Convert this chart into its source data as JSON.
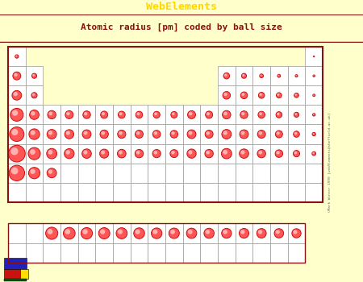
{
  "title_bar": "WebElements",
  "title_bar_bg": "#8B1010",
  "title_bar_fg": "#FFD700",
  "subtitle": "Atomic radius [pm] coded by ball size",
  "subtitle_bg": "#FFFFCC",
  "subtitle_fg": "#8B1010",
  "outer_bg": "#FFFFCC",
  "main_bg": "#FFFFCC",
  "cell_bg": "#FFFFFF",
  "cell_border": "#999999",
  "frame_border": "#8B1010",
  "ball_fill": "#FF5555",
  "ball_edge": "#CC1111",
  "ball_highlight": "#FFAAAA",
  "watermark": "©Mark Winter 1999 [web9lements@sheffield.ac.uk]",
  "elements": [
    {
      "row": 1,
      "col": 1,
      "r": 0.18
    },
    {
      "row": 1,
      "col": 18,
      "r": 0.06
    },
    {
      "row": 2,
      "col": 1,
      "r": 0.42
    },
    {
      "row": 2,
      "col": 2,
      "r": 0.26
    },
    {
      "row": 2,
      "col": 13,
      "r": 0.32
    },
    {
      "row": 2,
      "col": 14,
      "r": 0.26
    },
    {
      "row": 2,
      "col": 15,
      "r": 0.2
    },
    {
      "row": 2,
      "col": 16,
      "r": 0.16
    },
    {
      "row": 2,
      "col": 17,
      "r": 0.13
    },
    {
      "row": 2,
      "col": 18,
      "r": 0.1
    },
    {
      "row": 3,
      "col": 1,
      "r": 0.5
    },
    {
      "row": 3,
      "col": 2,
      "r": 0.3
    },
    {
      "row": 3,
      "col": 13,
      "r": 0.4
    },
    {
      "row": 3,
      "col": 14,
      "r": 0.36
    },
    {
      "row": 3,
      "col": 15,
      "r": 0.32
    },
    {
      "row": 3,
      "col": 16,
      "r": 0.28
    },
    {
      "row": 3,
      "col": 17,
      "r": 0.24
    },
    {
      "row": 3,
      "col": 18,
      "r": 0.12
    },
    {
      "row": 4,
      "col": 1,
      "r": 0.68
    },
    {
      "row": 4,
      "col": 2,
      "r": 0.5
    },
    {
      "row": 4,
      "col": 3,
      "r": 0.44
    },
    {
      "row": 4,
      "col": 4,
      "r": 0.42
    },
    {
      "row": 4,
      "col": 5,
      "r": 0.4
    },
    {
      "row": 4,
      "col": 6,
      "r": 0.38
    },
    {
      "row": 4,
      "col": 7,
      "r": 0.37
    },
    {
      "row": 4,
      "col": 8,
      "r": 0.36
    },
    {
      "row": 4,
      "col": 9,
      "r": 0.35
    },
    {
      "row": 4,
      "col": 10,
      "r": 0.34
    },
    {
      "row": 4,
      "col": 11,
      "r": 0.42
    },
    {
      "row": 4,
      "col": 12,
      "r": 0.38
    },
    {
      "row": 4,
      "col": 13,
      "r": 0.44
    },
    {
      "row": 4,
      "col": 14,
      "r": 0.4
    },
    {
      "row": 4,
      "col": 15,
      "r": 0.36
    },
    {
      "row": 4,
      "col": 16,
      "r": 0.32
    },
    {
      "row": 4,
      "col": 17,
      "r": 0.26
    },
    {
      "row": 4,
      "col": 18,
      "r": 0.14
    },
    {
      "row": 5,
      "col": 1,
      "r": 0.76
    },
    {
      "row": 5,
      "col": 2,
      "r": 0.56
    },
    {
      "row": 5,
      "col": 3,
      "r": 0.5
    },
    {
      "row": 5,
      "col": 4,
      "r": 0.48
    },
    {
      "row": 5,
      "col": 5,
      "r": 0.46
    },
    {
      "row": 5,
      "col": 6,
      "r": 0.44
    },
    {
      "row": 5,
      "col": 7,
      "r": 0.43
    },
    {
      "row": 5,
      "col": 8,
      "r": 0.42
    },
    {
      "row": 5,
      "col": 9,
      "r": 0.41
    },
    {
      "row": 5,
      "col": 10,
      "r": 0.4
    },
    {
      "row": 5,
      "col": 11,
      "r": 0.46
    },
    {
      "row": 5,
      "col": 12,
      "r": 0.42
    },
    {
      "row": 5,
      "col": 13,
      "r": 0.5
    },
    {
      "row": 5,
      "col": 14,
      "r": 0.46
    },
    {
      "row": 5,
      "col": 15,
      "r": 0.42
    },
    {
      "row": 5,
      "col": 16,
      "r": 0.38
    },
    {
      "row": 5,
      "col": 17,
      "r": 0.32
    },
    {
      "row": 5,
      "col": 18,
      "r": 0.18
    },
    {
      "row": 6,
      "col": 1,
      "r": 0.88
    },
    {
      "row": 6,
      "col": 2,
      "r": 0.64
    },
    {
      "row": 6,
      "col": 3,
      "r": 0.54
    },
    {
      "row": 6,
      "col": 4,
      "r": 0.52
    },
    {
      "row": 6,
      "col": 5,
      "r": 0.49
    },
    {
      "row": 6,
      "col": 6,
      "r": 0.47
    },
    {
      "row": 6,
      "col": 7,
      "r": 0.45
    },
    {
      "row": 6,
      "col": 8,
      "r": 0.44
    },
    {
      "row": 6,
      "col": 9,
      "r": 0.43
    },
    {
      "row": 6,
      "col": 10,
      "r": 0.42
    },
    {
      "row": 6,
      "col": 11,
      "r": 0.48
    },
    {
      "row": 6,
      "col": 12,
      "r": 0.44
    },
    {
      "row": 6,
      "col": 13,
      "r": 0.54
    },
    {
      "row": 6,
      "col": 14,
      "r": 0.49
    },
    {
      "row": 6,
      "col": 15,
      "r": 0.44
    },
    {
      "row": 6,
      "col": 16,
      "r": 0.4
    },
    {
      "row": 6,
      "col": 17,
      "r": 0.34
    },
    {
      "row": 6,
      "col": 18,
      "r": 0.2
    },
    {
      "row": 7,
      "col": 1,
      "r": 0.82
    },
    {
      "row": 7,
      "col": 2,
      "r": 0.6
    },
    {
      "row": 7,
      "col": 3,
      "r": 0.5
    }
  ],
  "lanthanides": [
    {
      "col": 3,
      "r": 0.64
    },
    {
      "col": 4,
      "r": 0.62
    },
    {
      "col": 5,
      "r": 0.6
    },
    {
      "col": 6,
      "r": 0.59
    },
    {
      "col": 7,
      "r": 0.58
    },
    {
      "col": 8,
      "r": 0.57
    },
    {
      "col": 9,
      "r": 0.56
    },
    {
      "col": 10,
      "r": 0.55
    },
    {
      "col": 11,
      "r": 0.54
    },
    {
      "col": 12,
      "r": 0.53
    },
    {
      "col": 13,
      "r": 0.52
    },
    {
      "col": 14,
      "r": 0.51
    },
    {
      "col": 15,
      "r": 0.5
    },
    {
      "col": 16,
      "r": 0.49
    },
    {
      "col": 17,
      "r": 0.48
    }
  ]
}
